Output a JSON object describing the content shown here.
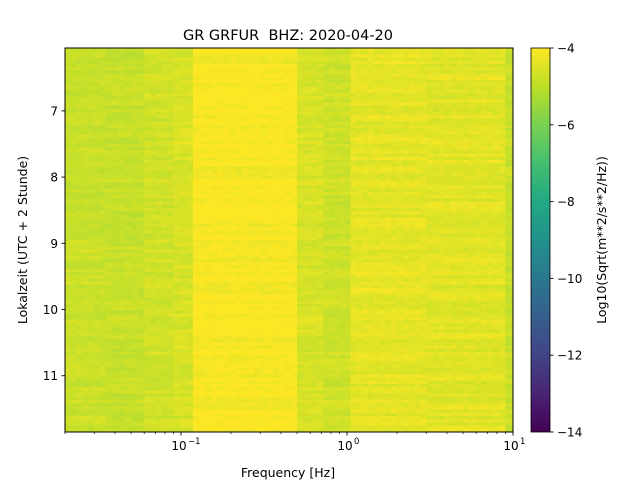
{
  "chart_data": {
    "type": "heatmap",
    "title": "GR GRFUR  BHZ: 2020-04-20",
    "xlabel": "Frequency [Hz]",
    "ylabel": "Lokalzeit (UTC + 2 Stunde)",
    "xscale": "log",
    "xlim": [
      0.02,
      10
    ],
    "ylim": [
      6.05,
      11.85
    ],
    "y_inverted": true,
    "x_ticks": [
      {
        "value": 0.1,
        "base": "10",
        "exp": "−1"
      },
      {
        "value": 1,
        "base": "10",
        "exp": "0"
      },
      {
        "value": 10,
        "base": "10",
        "exp": "1"
      }
    ],
    "y_ticks": [
      {
        "value": 7,
        "label": "7"
      },
      {
        "value": 8,
        "label": "8"
      },
      {
        "value": 9,
        "label": "9"
      },
      {
        "value": 10,
        "label": "10"
      },
      {
        "value": 11,
        "label": "11"
      }
    ],
    "colorbar": {
      "label": "Log10(Sqrt(m**2/s**2/Hz))",
      "colormap": "viridis",
      "range": [
        -14,
        -4
      ],
      "ticks": [
        {
          "value": -4,
          "label": "−4"
        },
        {
          "value": -6,
          "label": "−6"
        },
        {
          "value": -8,
          "label": "−8"
        },
        {
          "value": -10,
          "label": "−10"
        },
        {
          "value": -12,
          "label": "−12"
        },
        {
          "value": -14,
          "label": "−14"
        }
      ]
    },
    "frequency_bands": [
      {
        "f_start": 0.02,
        "f_end": 0.035,
        "level": -4.75
      },
      {
        "f_start": 0.035,
        "f_end": 0.06,
        "level": -4.8
      },
      {
        "f_start": 0.06,
        "f_end": 0.09,
        "level": -4.65
      },
      {
        "f_start": 0.09,
        "f_end": 0.118,
        "level": -4.55
      },
      {
        "f_start": 0.118,
        "f_end": 0.5,
        "level": -4.05
      },
      {
        "f_start": 0.5,
        "f_end": 0.72,
        "level": -4.55
      },
      {
        "f_start": 0.72,
        "f_end": 1.05,
        "level": -4.7
      },
      {
        "f_start": 1.05,
        "f_end": 3.0,
        "level": -4.35
      },
      {
        "f_start": 3.0,
        "f_end": 9.0,
        "level": -4.4
      },
      {
        "f_start": 9.0,
        "f_end": 10.0,
        "level": -4.8
      }
    ]
  }
}
